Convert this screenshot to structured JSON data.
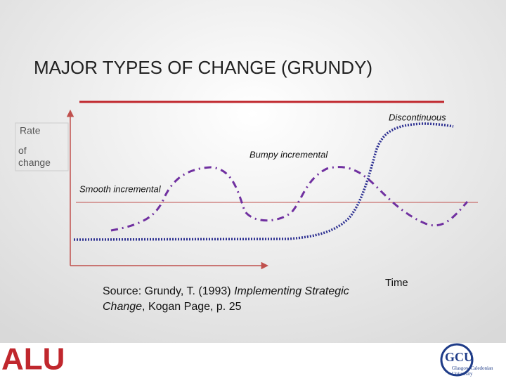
{
  "title": "MAJOR TYPES OF CHANGE (GRUNDY)",
  "y_axis": {
    "line1": "Rate",
    "line2": "of change"
  },
  "x_axis": "Time",
  "curves": {
    "discontinuous": "Discontinuous",
    "bumpy": "Bumpy incremental",
    "smooth": "Smooth incremental"
  },
  "source": {
    "prefix": "Source:  Grundy, T. (1993) ",
    "book": "Implementing Strategic Change",
    "suffix": ", Kogan Page, p. 25"
  },
  "logos": {
    "left": "ALU",
    "right": "GCU",
    "right_sub": "Glasgow Caledonian University"
  }
}
